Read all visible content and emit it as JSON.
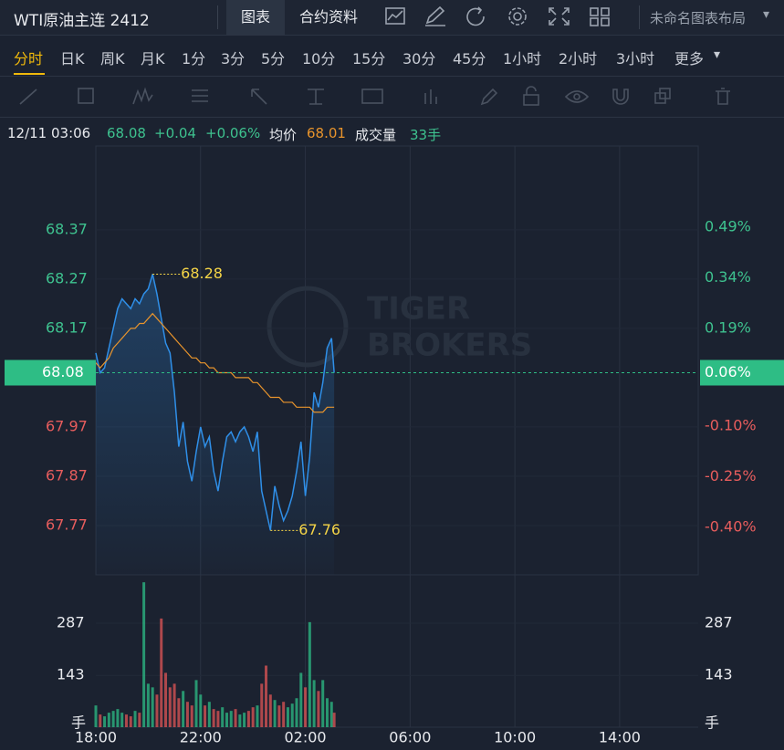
{
  "toolbar": {
    "title": "WTI原油主连 2412",
    "tabs": [
      "图表",
      "合约资料"
    ],
    "layout": "未命名图表布局"
  },
  "timeframes": [
    "分时",
    "日K",
    "周K",
    "月K",
    "1分",
    "3分",
    "5分",
    "10分",
    "15分",
    "30分",
    "45分",
    "1小时",
    "2小时",
    "3小时",
    "更多"
  ],
  "info": {
    "time": "12/11 03:06",
    "price": "68.08",
    "change": "+0.04",
    "change_pct": "+0.06%",
    "avg": "68.01",
    "volume_label": "成交量",
    "volume": "33手"
  },
  "chart_data": [
    {
      "type": "line",
      "x": [
        "18:00",
        "18:10",
        "18:20",
        "18:30",
        "18:40",
        "18:50",
        "19:00",
        "19:10",
        "19:20",
        "19:30",
        "19:40",
        "19:50",
        "20:00",
        "20:10",
        "20:20",
        "20:30",
        "20:40",
        "20:50",
        "21:00",
        "21:10",
        "21:20",
        "21:30",
        "21:40",
        "21:50",
        "22:00",
        "22:10",
        "22:20",
        "22:30",
        "22:40",
        "22:50",
        "23:00",
        "23:10",
        "23:20",
        "23:30",
        "23:40",
        "23:50",
        "00:00",
        "00:10",
        "00:20",
        "00:30",
        "00:40",
        "00:50",
        "01:00",
        "01:10",
        "01:20",
        "01:30",
        "01:40",
        "01:50",
        "02:00",
        "02:10",
        "02:20",
        "02:30",
        "02:40",
        "02:50",
        "03:00",
        "03:06"
      ],
      "xlim": [
        "18:00",
        "17:00"
      ],
      "series": [
        {
          "color": "#2f8fe8",
          "values": [
            68.12,
            68.08,
            68.09,
            68.13,
            68.17,
            68.21,
            68.23,
            68.22,
            68.21,
            68.23,
            68.22,
            68.24,
            68.25,
            68.28,
            68.24,
            68.19,
            68.14,
            68.12,
            68.04,
            67.93,
            67.98,
            67.9,
            67.86,
            67.92,
            67.97,
            67.93,
            67.95,
            67.88,
            67.84,
            67.9,
            67.95,
            67.96,
            67.94,
            67.96,
            67.97,
            67.95,
            67.92,
            67.96,
            67.84,
            67.8,
            67.76,
            67.85,
            67.81,
            67.78,
            67.8,
            67.83,
            67.88,
            67.94,
            67.83,
            67.91,
            68.04,
            68.01,
            68.06,
            68.13,
            68.15,
            68.08
          ]
        },
        {
          "name": "均价",
          "color": "#e8942c",
          "values": [
            68.1,
            68.09,
            68.1,
            68.11,
            68.13,
            68.14,
            68.15,
            68.16,
            68.17,
            68.17,
            68.18,
            68.18,
            68.19,
            68.2,
            68.19,
            68.18,
            68.17,
            68.16,
            68.15,
            68.14,
            68.13,
            68.12,
            68.11,
            68.11,
            68.1,
            68.1,
            68.09,
            68.09,
            68.08,
            68.08,
            68.08,
            68.08,
            68.07,
            68.07,
            68.07,
            68.07,
            68.06,
            68.06,
            68.05,
            68.04,
            68.03,
            68.03,
            68.03,
            68.02,
            68.02,
            68.02,
            68.01,
            68.01,
            68.01,
            68.01,
            68.0,
            68.0,
            68.0,
            68.01,
            68.01,
            68.01
          ]
        }
      ],
      "ylim": [
        67.67,
        68.54
      ],
      "yticks": [
        68.37,
        68.27,
        68.17,
        67.97,
        67.87,
        67.77
      ],
      "y2lim": [
        -0.54,
        0.73
      ],
      "y2ticks": [
        {
          "value": 0.49,
          "label": "0.49%"
        },
        {
          "value": 0.34,
          "label": "0.34%"
        },
        {
          "value": 0.19,
          "label": "0.19%"
        },
        {
          "value": -0.1,
          "label": "-0.10%"
        },
        {
          "value": -0.25,
          "label": "-0.25%"
        },
        {
          "value": -0.4,
          "label": "-0.40%"
        }
      ],
      "last_price": 68.08,
      "last_change_pct": {
        "value": 0.06,
        "label": "0.06%"
      },
      "high": {
        "x": "20:10",
        "value": 68.28
      },
      "low": {
        "x": "00:40",
        "value": 67.76
      },
      "up_color": "#3ec28f",
      "down_color": "#e85d5d",
      "watermark": [
        "TIGER",
        "BROKERS"
      ]
    },
    {
      "type": "bar",
      "x": [
        "18:00",
        "18:10",
        "18:20",
        "18:30",
        "18:40",
        "18:50",
        "19:00",
        "19:10",
        "19:20",
        "19:30",
        "19:40",
        "19:50",
        "20:00",
        "20:10",
        "20:20",
        "20:30",
        "20:40",
        "20:50",
        "21:00",
        "21:10",
        "21:20",
        "21:30",
        "21:40",
        "21:50",
        "22:00",
        "22:10",
        "22:20",
        "22:30",
        "22:40",
        "22:50",
        "23:00",
        "23:10",
        "23:20",
        "23:30",
        "23:40",
        "23:50",
        "00:00",
        "00:10",
        "00:20",
        "00:30",
        "00:40",
        "00:50",
        "01:00",
        "01:10",
        "01:20",
        "01:30",
        "01:40",
        "01:50",
        "02:00",
        "02:10",
        "02:20",
        "02:30",
        "02:40",
        "02:50",
        "03:00",
        "03:06"
      ],
      "xlim": [
        "18:00",
        "17:00"
      ],
      "xticks": [
        "18:00",
        "22:00",
        "02:00",
        "06:00",
        "10:00",
        "14:00"
      ],
      "values": [
        60,
        35,
        30,
        40,
        45,
        50,
        40,
        35,
        30,
        45,
        40,
        400,
        120,
        110,
        90,
        300,
        150,
        110,
        120,
        80,
        100,
        70,
        60,
        130,
        90,
        60,
        70,
        50,
        45,
        55,
        40,
        45,
        50,
        35,
        40,
        45,
        55,
        60,
        120,
        170,
        90,
        75,
        60,
        70,
        55,
        65,
        80,
        150,
        110,
        290,
        130,
        100,
        130,
        80,
        70,
        40
      ],
      "ylim": [
        0,
        408
      ],
      "yticks": [
        287,
        143
      ],
      "unit": "手",
      "up_color": "#2ebd85",
      "down_color": "#e05555"
    }
  ]
}
